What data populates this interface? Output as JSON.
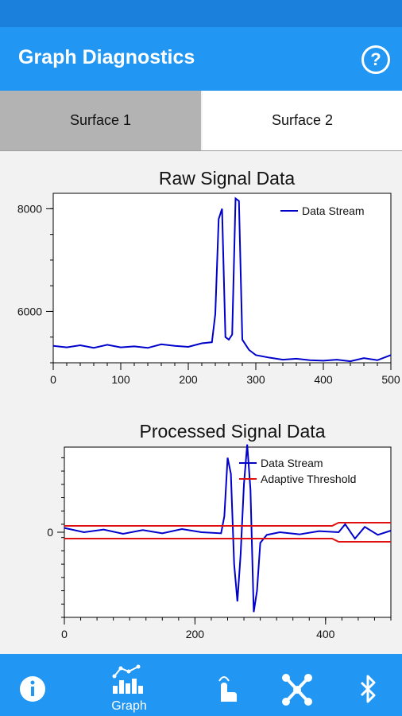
{
  "app": {
    "title": "Graph Diagnostics",
    "help_icon": "help-circle-icon",
    "accent": "#2196f3",
    "status_bar_color": "#1b80db"
  },
  "tabs": [
    {
      "label": "Surface 1",
      "selected": true
    },
    {
      "label": "Surface 2",
      "selected": false
    }
  ],
  "chart_data": [
    {
      "type": "line",
      "title": "Raw Signal Data",
      "xlabel": "",
      "ylabel": "",
      "xlim": [
        0,
        500
      ],
      "ylim": [
        5000,
        8300
      ],
      "x_ticks": [
        "0",
        "100",
        "200",
        "300",
        "400",
        "500"
      ],
      "y_ticks": [
        "6000",
        "8000"
      ],
      "legend_position": "top-right",
      "series": [
        {
          "name": "Data Stream",
          "color": "#0000cc",
          "x": [
            0,
            20,
            40,
            60,
            80,
            100,
            120,
            140,
            160,
            180,
            200,
            220,
            235,
            240,
            245,
            250,
            255,
            260,
            265,
            270,
            275,
            280,
            285,
            290,
            300,
            320,
            340,
            360,
            380,
            400,
            420,
            440,
            460,
            480,
            500
          ],
          "y": [
            5330,
            5300,
            5340,
            5290,
            5350,
            5300,
            5320,
            5290,
            5360,
            5330,
            5310,
            5380,
            5400,
            5950,
            7800,
            8000,
            5500,
            5450,
            5550,
            8200,
            8150,
            5450,
            5350,
            5250,
            5150,
            5100,
            5060,
            5080,
            5050,
            5040,
            5060,
            5030,
            5090,
            5050,
            5150
          ]
        }
      ]
    },
    {
      "type": "line",
      "title": "Processed Signal Data",
      "xlabel": "",
      "ylabel": "",
      "xlim": [
        0,
        500
      ],
      "ylim": [
        -1.6,
        1.6
      ],
      "x_ticks": [
        "0",
        "200",
        "400"
      ],
      "y_ticks": [
        "0"
      ],
      "legend_position": "top-right",
      "series": [
        {
          "name": "Data Stream",
          "color": "#0000cc",
          "x": [
            0,
            30,
            60,
            90,
            120,
            150,
            180,
            210,
            240,
            245,
            250,
            255,
            260,
            265,
            270,
            275,
            280,
            285,
            290,
            295,
            300,
            310,
            330,
            360,
            390,
            420,
            430,
            445,
            460,
            480,
            500
          ],
          "y": [
            0.08,
            0.0,
            0.05,
            -0.03,
            0.04,
            -0.02,
            0.06,
            0.0,
            -0.02,
            0.3,
            1.4,
            1.1,
            -0.6,
            -1.3,
            -0.4,
            0.9,
            1.65,
            0.8,
            -1.5,
            -1.1,
            -0.2,
            -0.05,
            0.0,
            -0.04,
            0.02,
            0.0,
            0.15,
            -0.12,
            0.1,
            -0.05,
            0.03
          ]
        },
        {
          "name": "Adaptive Threshold",
          "color": "#e01010",
          "x": [
            0,
            410,
            420,
            500
          ],
          "upper": [
            0.12,
            0.12,
            0.18,
            0.18
          ],
          "lower": [
            -0.12,
            -0.12,
            -0.18,
            -0.18
          ]
        }
      ]
    }
  ],
  "nav": {
    "items": [
      {
        "icon": "info-icon",
        "label": ""
      },
      {
        "icon": "graph-icon",
        "label": "Graph"
      },
      {
        "icon": "touch-icon",
        "label": ""
      },
      {
        "icon": "network-icon",
        "label": ""
      },
      {
        "icon": "bluetooth-icon",
        "label": ""
      }
    ]
  }
}
